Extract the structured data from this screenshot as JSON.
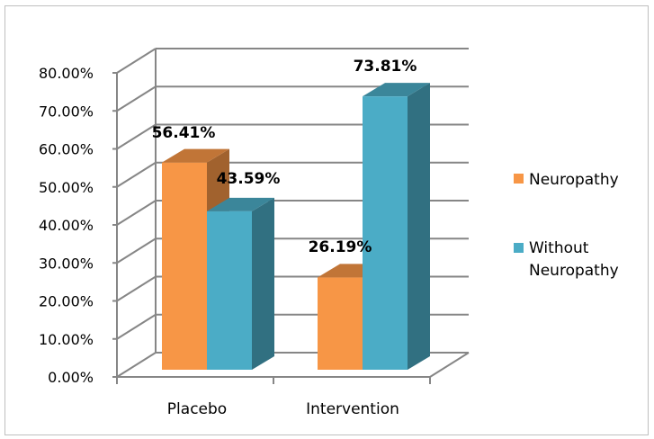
{
  "chart_data": {
    "type": "bar",
    "style": "3d-clustered-column",
    "categories": [
      "Placebo",
      "Intervention"
    ],
    "series": [
      {
        "name": "Neuropathy",
        "values": [
          56.41,
          26.19
        ],
        "labels": [
          "56.41%",
          "26.19%"
        ],
        "color": "#f79646"
      },
      {
        "name": "Without Neuropathy",
        "legend_lines": [
          "Without",
          "Neuropathy"
        ],
        "values": [
          43.59,
          73.81
        ],
        "labels": [
          "43.59%",
          "73.81%"
        ],
        "color": "#4bacc6"
      }
    ],
    "yticks": [
      "0.00%",
      "10.00%",
      "20.00%",
      "30.00%",
      "40.00%",
      "50.00%",
      "60.00%",
      "70.00%",
      "80.00%"
    ],
    "ylim": [
      0,
      80
    ],
    "grid": true,
    "legend_position": "right"
  }
}
